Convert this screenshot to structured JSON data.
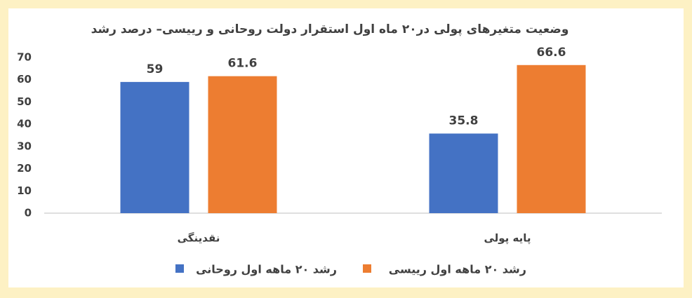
{
  "chart_data": {
    "type": "bar",
    "title": "وضعیت متغیرهای پولی در۲۰ ماه اول استقرار دولت روحانی و رییسی– درصد رشد",
    "categories": [
      "نقدینگی",
      "پایه پولی"
    ],
    "series": [
      {
        "name": "رشد ۲۰ ماهه اول روحانی",
        "color": "#4472c4",
        "values": [
          59,
          35.8
        ]
      },
      {
        "name": "رشد ۲۰ ماهه اول رییسی",
        "color": "#ed7d31",
        "values": [
          61.6,
          66.6
        ]
      }
    ],
    "ylim": [
      0,
      70
    ],
    "yticks": [
      0,
      10,
      20,
      30,
      40,
      50,
      60,
      70
    ],
    "grid": false
  }
}
